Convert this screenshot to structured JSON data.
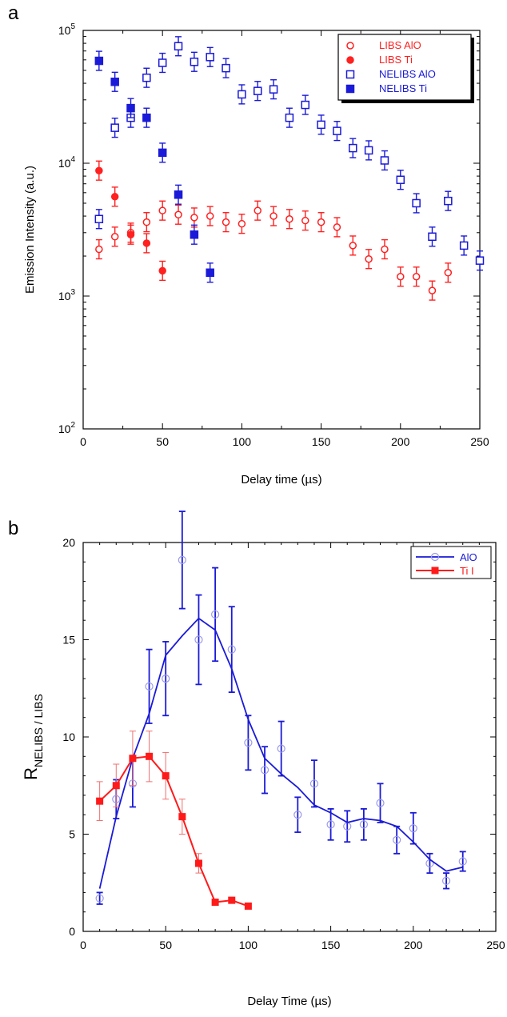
{
  "chart_data": [
    {
      "panel": "a",
      "type": "scatter",
      "xlabel": "Delay time (µs)",
      "ylabel": "Emission Intensity (a.u.)",
      "xlim": [
        0,
        250
      ],
      "ylim": [
        100,
        100000
      ],
      "yscale": "log",
      "xticks": [
        0,
        50,
        100,
        150,
        200,
        250
      ],
      "yticks": [
        {
          "value": 100,
          "base": "10",
          "exp": "2"
        },
        {
          "value": 1000,
          "base": "10",
          "exp": "3"
        },
        {
          "value": 10000,
          "base": "10",
          "exp": "4"
        },
        {
          "value": 100000,
          "base": "10",
          "exp": "5"
        }
      ],
      "legend_position": "top-right",
      "series": [
        {
          "name": "LIBS AlO",
          "color": "#ff2020",
          "marker": "circle-open",
          "x": [
            10,
            20,
            30,
            40,
            50,
            60,
            70,
            80,
            90,
            100,
            110,
            120,
            130,
            140,
            150,
            160,
            170,
            180,
            190,
            200,
            210,
            220,
            230
          ],
          "y": [
            2250,
            2800,
            3000,
            3600,
            4400,
            4100,
            3900,
            4000,
            3600,
            3500,
            4400,
            4000,
            3800,
            3700,
            3600,
            3300,
            2400,
            1900,
            2250,
            1400,
            1400,
            1100,
            1500
          ]
        },
        {
          "name": "LIBS Ti",
          "color": "#ff2020",
          "marker": "circle-filled",
          "x": [
            10,
            20,
            30,
            40,
            50
          ],
          "y": [
            8800,
            5600,
            2900,
            2500,
            1550
          ]
        },
        {
          "name": "NELIBS AlO",
          "color": "#1a1ad8",
          "marker": "square-open",
          "x": [
            10,
            20,
            30,
            40,
            50,
            60,
            70,
            80,
            90,
            100,
            110,
            120,
            130,
            140,
            150,
            160,
            170,
            180,
            190,
            200,
            210,
            220,
            230,
            240,
            250
          ],
          "y": [
            3800,
            18500,
            22000,
            44000,
            57000,
            76000,
            58000,
            63000,
            52000,
            33000,
            35000,
            36000,
            22000,
            27500,
            19500,
            17500,
            13000,
            12500,
            10500,
            7500,
            5000,
            2800,
            5200,
            2400,
            1850
          ]
        },
        {
          "name": "NELIBS Ti",
          "color": "#1a1ad8",
          "marker": "square-filled",
          "x": [
            10,
            20,
            30,
            40,
            50,
            60,
            70,
            80
          ],
          "y": [
            59000,
            41000,
            26000,
            22000,
            12000,
            5800,
            2900,
            1500
          ]
        }
      ]
    },
    {
      "panel": "b",
      "type": "line",
      "xlabel": "Delay Time (µs)",
      "ylabel_main": "R",
      "ylabel_sub": "NELIBS / LIBS",
      "xlim": [
        0,
        250
      ],
      "ylim": [
        0,
        20
      ],
      "xticks": [
        0,
        50,
        100,
        150,
        200,
        250
      ],
      "yticks": [
        0,
        5,
        10,
        15,
        20
      ],
      "legend_position": "top-right",
      "series": [
        {
          "name": "AlO",
          "color": "#1a1ad8",
          "x": [
            10,
            20,
            30,
            40,
            50,
            60,
            70,
            80,
            90,
            100,
            110,
            120,
            130,
            140,
            150,
            160,
            170,
            180,
            190,
            200,
            210,
            220,
            230
          ],
          "y": [
            1.7,
            6.8,
            7.6,
            12.6,
            13.0,
            19.1,
            15.0,
            16.3,
            14.5,
            9.7,
            8.3,
            9.4,
            6.0,
            7.6,
            5.5,
            5.4,
            5.5,
            6.6,
            4.7,
            5.3,
            3.5,
            2.6,
            3.6
          ],
          "err": [
            0.3,
            1.0,
            1.2,
            1.9,
            1.9,
            2.5,
            2.3,
            2.4,
            2.2,
            1.4,
            1.2,
            1.4,
            0.9,
            1.2,
            0.8,
            0.8,
            0.8,
            1.0,
            0.7,
            0.8,
            0.5,
            0.4,
            0.5
          ],
          "fit_x": [
            10,
            20,
            30,
            40,
            50,
            60,
            70,
            80,
            90,
            100,
            110,
            120,
            130,
            140,
            150,
            160,
            170,
            180,
            190,
            200,
            210,
            220,
            230
          ],
          "fit_y": [
            2.2,
            5.9,
            8.9,
            11.2,
            14.2,
            15.2,
            16.1,
            15.5,
            13.5,
            10.9,
            8.9,
            8.1,
            7.4,
            6.5,
            6.1,
            5.6,
            5.8,
            5.7,
            5.4,
            4.6,
            3.7,
            3.1,
            3.3
          ]
        },
        {
          "name": "Ti I",
          "color": "#ff1a1a",
          "x": [
            10,
            20,
            30,
            40,
            50,
            60,
            70,
            80,
            90,
            100
          ],
          "y": [
            6.7,
            7.5,
            8.9,
            9.0,
            8.0,
            5.9,
            3.5,
            1.5,
            1.6,
            1.3
          ],
          "err": [
            1.0,
            1.1,
            1.4,
            1.3,
            1.2,
            0.9,
            0.5,
            0,
            0,
            0
          ]
        }
      ]
    }
  ]
}
